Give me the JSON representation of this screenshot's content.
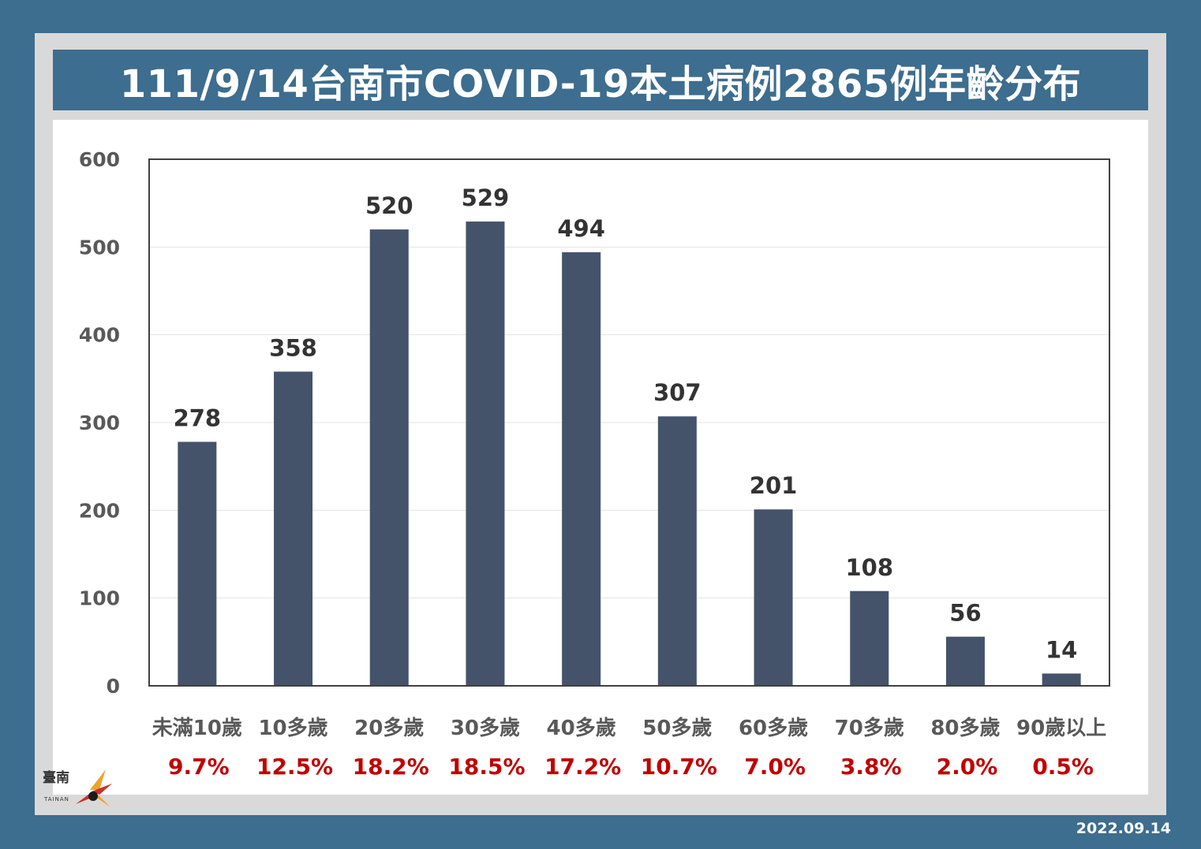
{
  "title": "111/9/14台南市COVID-19本土病例2865例年齡分布",
  "date": "2022.09.14",
  "logo": {
    "text": "臺南",
    "sub": "TAINAN"
  },
  "colors": {
    "background": "#3d6d8f",
    "bar": "#44536a",
    "percent": "#c00000",
    "label": "#595959",
    "value": "#333333"
  },
  "chart_data": {
    "type": "bar",
    "title": "111/9/14台南市COVID-19本土病例2865例年齡分布",
    "categories": [
      "未滿10歲",
      "10多歲",
      "20多歲",
      "30多歲",
      "40多歲",
      "50多歲",
      "60多歲",
      "70多歲",
      "80多歲",
      "90歲以上"
    ],
    "values": [
      278,
      358,
      520,
      529,
      494,
      307,
      201,
      108,
      56,
      14
    ],
    "percentages": [
      "9.7%",
      "12.5%",
      "18.2%",
      "18.5%",
      "17.2%",
      "10.7%",
      "7.0%",
      "3.8%",
      "2.0%",
      "0.5%"
    ],
    "ylim": [
      0,
      600
    ],
    "yticks": [
      "0",
      "100",
      "200",
      "300",
      "400",
      "500",
      "600"
    ],
    "grid": true,
    "xlabel": "",
    "ylabel": ""
  }
}
